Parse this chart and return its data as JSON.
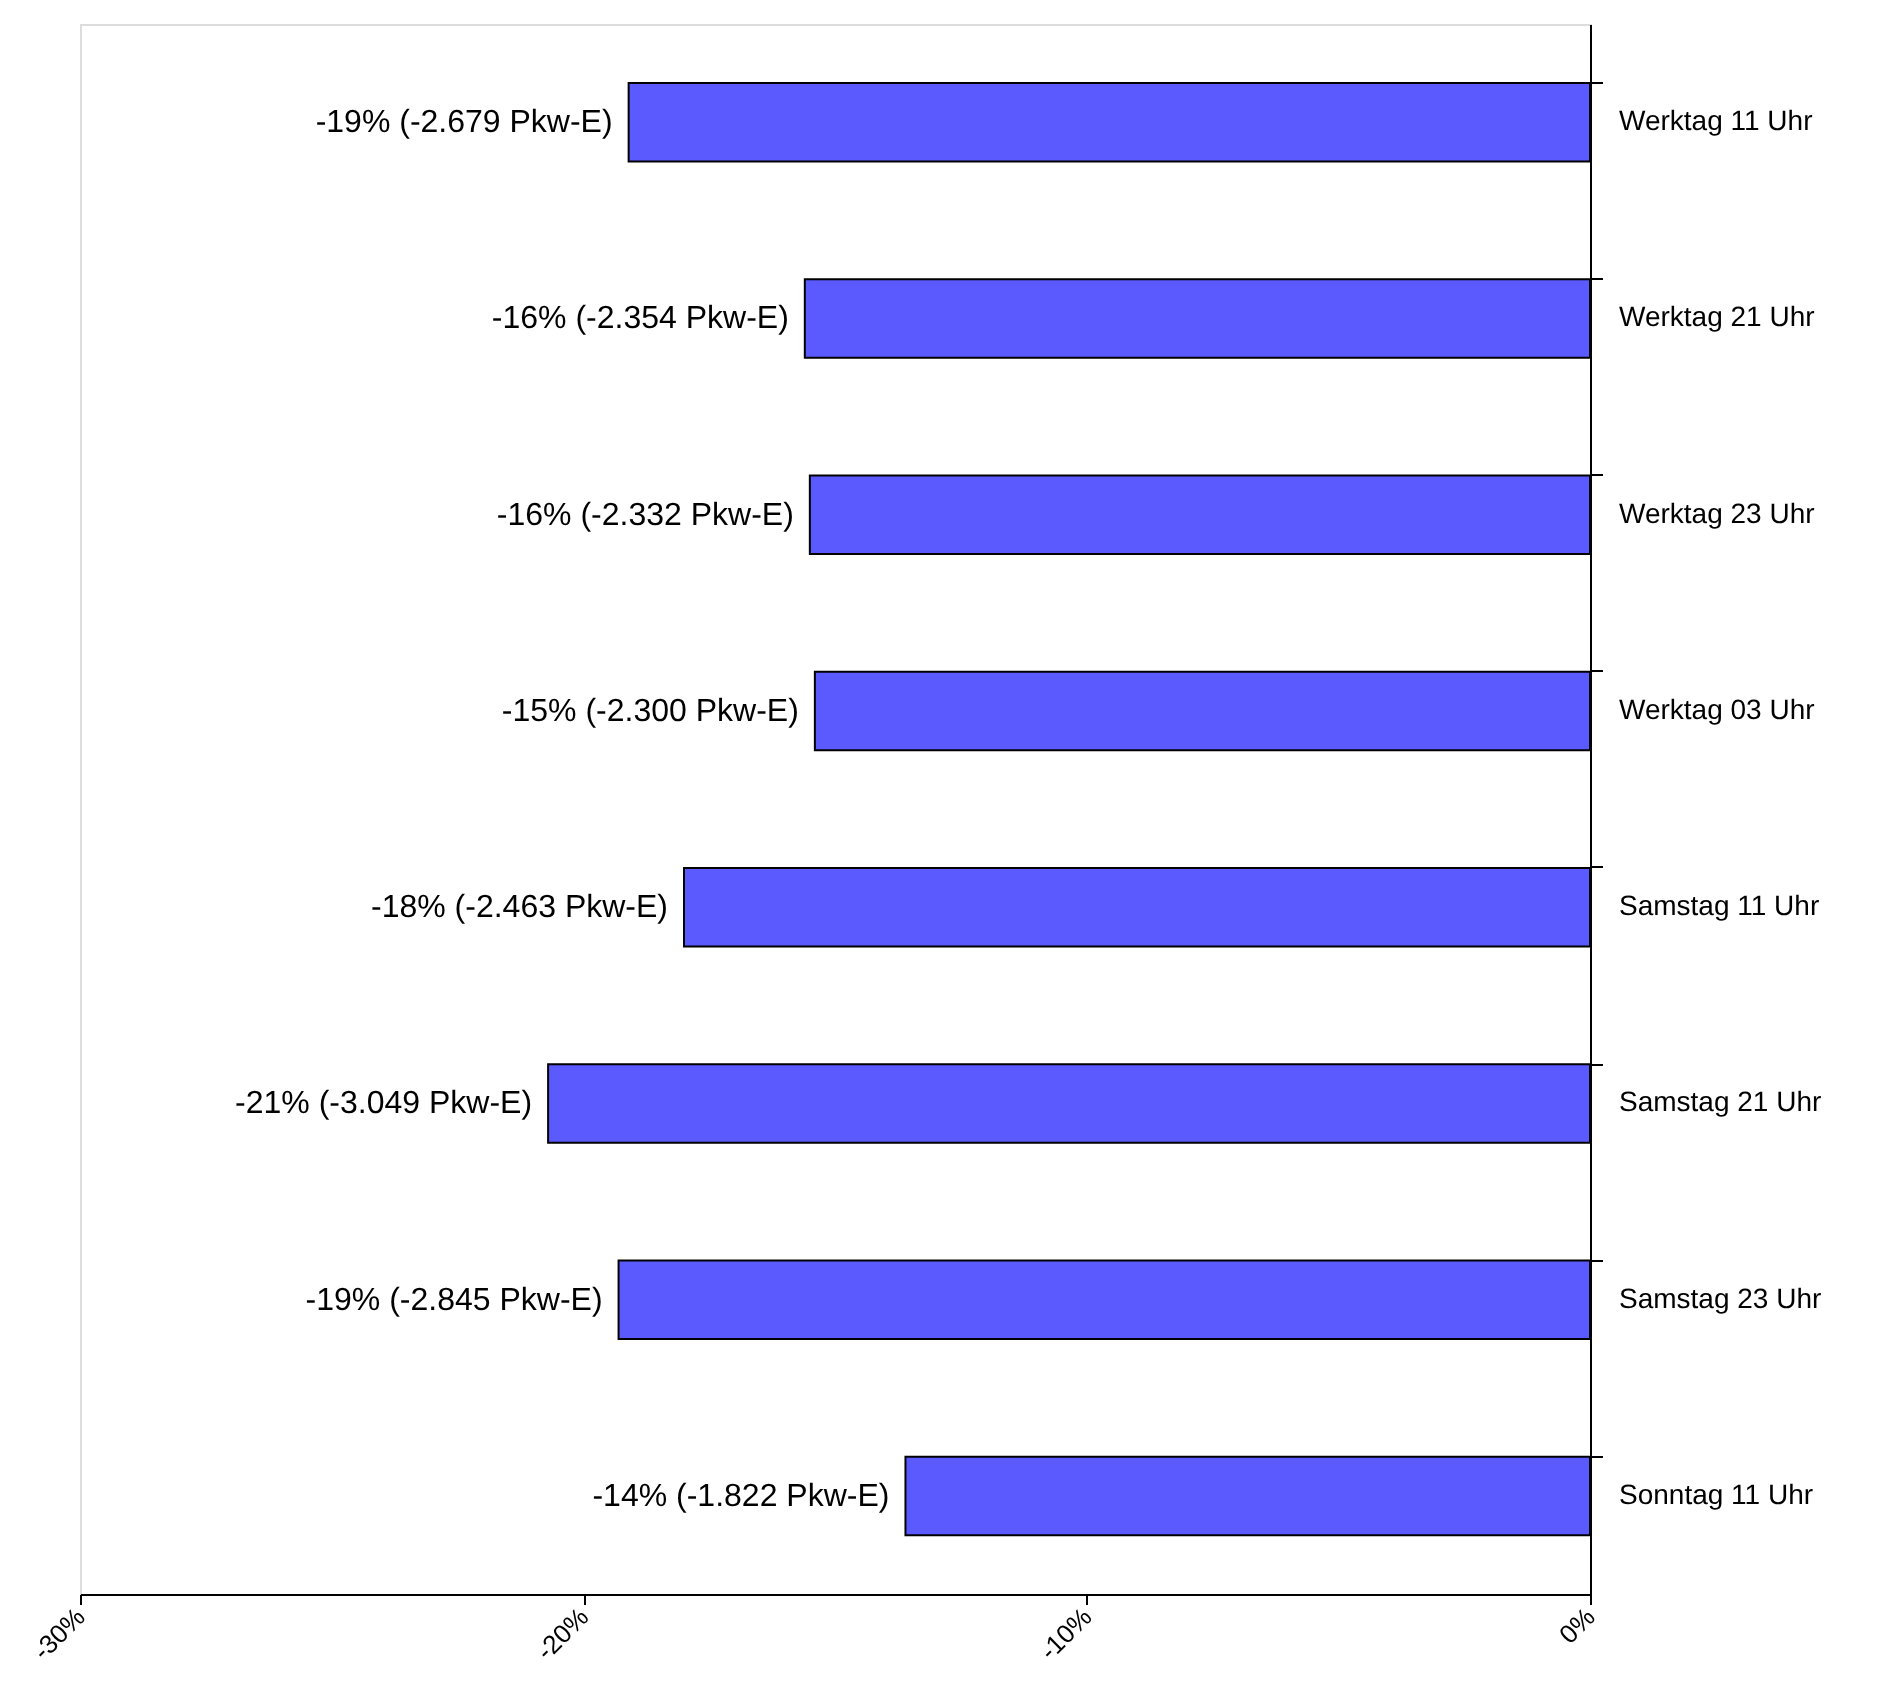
{
  "chart_data": {
    "type": "bar",
    "orientation": "horizontal",
    "categories": [
      "Werktag 11 Uhr",
      "Werktag 21 Uhr",
      "Werktag 23 Uhr",
      "Werktag 03 Uhr",
      "Samstag 11 Uhr",
      "Samstag 21 Uhr",
      "Samstag 23 Uhr",
      "Sonntag 11 Uhr"
    ],
    "values": [
      -19.1,
      -15.6,
      -15.5,
      -15.4,
      -18.0,
      -20.7,
      -19.3,
      -13.6
    ],
    "value_labels": [
      "-19% (-2.679 Pkw-E)",
      "-16% (-2.354 Pkw-E)",
      "-16% (-2.332 Pkw-E)",
      "-15% (-2.300 Pkw-E)",
      "-18% (-2.463 Pkw-E)",
      "-21% (-3.049 Pkw-E)",
      "-19% (-2.845 Pkw-E)",
      "-14% (-1.822 Pkw-E)"
    ],
    "color": "#5a5aff",
    "xlim": [
      -30,
      0
    ],
    "xticks": [
      {
        "value": -30,
        "label": "-30%"
      },
      {
        "value": -20,
        "label": "-20%"
      },
      {
        "value": -10,
        "label": "-10%"
      },
      {
        "value": 0,
        "label": "0%"
      }
    ],
    "grid": false
  }
}
